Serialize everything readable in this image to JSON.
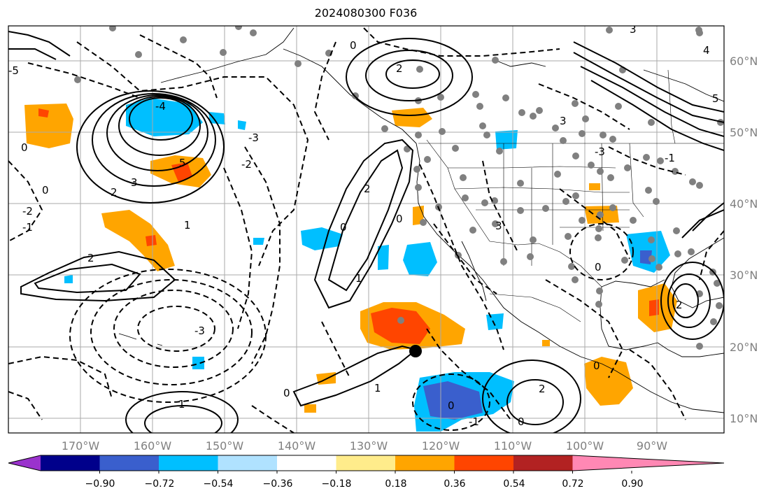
{
  "title": "2024080300 F036",
  "lon_labels": [
    "170°W",
    "160°W",
    "150°W",
    "140°W",
    "130°W",
    "120°W",
    "110°W",
    "100°W",
    "90°W"
  ],
  "lat_labels": [
    "60°N",
    "50°N",
    "40°N",
    "30°N",
    "20°N",
    "10°N"
  ],
  "colorbar": {
    "ticks": [
      "−0.90",
      "−0.72",
      "−0.54",
      "−0.36",
      "−0.18",
      "0.18",
      "0.36",
      "0.54",
      "0.72",
      "0.90"
    ],
    "colors": [
      "#9a32cd",
      "#00008b",
      "#3a5fcd",
      "#00bfff",
      "#b0e2ff",
      "#ffffff",
      "#ffec8b",
      "#ffa500",
      "#ff4500",
      "#b22222",
      "#ff88b4"
    ]
  },
  "contour_labels": [
    "-5",
    "-4",
    "-3",
    "-2",
    "-1",
    "0",
    "1",
    "2",
    "3",
    "4",
    "5"
  ],
  "marker": "black-dot"
}
